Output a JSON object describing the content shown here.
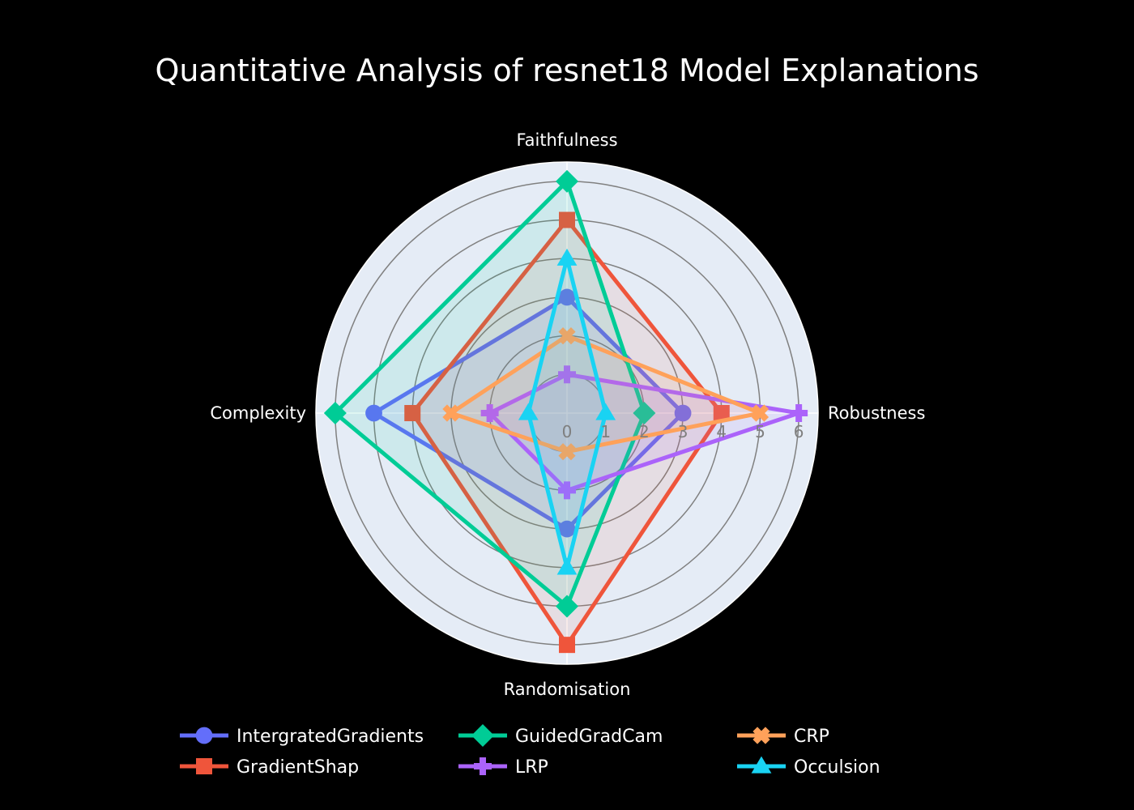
{
  "chart_data": {
    "type": "radar",
    "title": "Quantitative Analysis of resnet18 Model Explanations",
    "axes": [
      "Faithfulness",
      "Robustness",
      "Randomisation",
      "Complexity"
    ],
    "radial_range": [
      0,
      6.5
    ],
    "radial_ticks": [
      "0",
      "1",
      "2",
      "3",
      "4",
      "5",
      "6"
    ],
    "legend_position": "bottom",
    "plot_background": "#e5ecf6",
    "grid_color": "#808080",
    "series": [
      {
        "name": "IntergratedGradients",
        "color": "#636efa",
        "marker": "circle",
        "values": [
          3,
          3,
          3,
          5
        ]
      },
      {
        "name": "GradientShap",
        "color": "#ef553b",
        "marker": "square",
        "values": [
          5,
          4,
          6,
          4
        ]
      },
      {
        "name": "GuidedGradCam",
        "color": "#00cc96",
        "marker": "diamond",
        "values": [
          6,
          2,
          5,
          6
        ]
      },
      {
        "name": "LRP",
        "color": "#ab63fa",
        "marker": "cross",
        "values": [
          1,
          6,
          2,
          2
        ]
      },
      {
        "name": "CRP",
        "color": "#ffa15a",
        "marker": "x",
        "values": [
          2,
          5,
          1,
          3
        ]
      },
      {
        "name": "Occulsion",
        "color": "#19d3f3",
        "marker": "triangle-up",
        "values": [
          4,
          1,
          4,
          1
        ]
      }
    ]
  }
}
